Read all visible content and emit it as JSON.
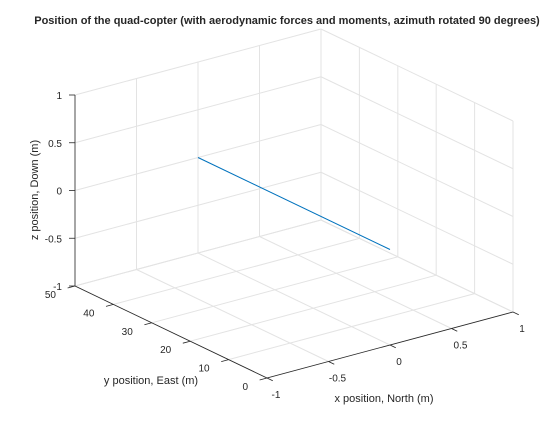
{
  "chart_data": {
    "type": "line",
    "title": "Position of the quad-copter (with aerodynamic forces and moments, azimuth rotated 90 degrees)",
    "xlabel": "x position, North (m)",
    "ylabel": "y position, East (m)",
    "zlabel": "z position, Down (m)",
    "xlim": [
      -1,
      1
    ],
    "ylim": [
      0,
      50
    ],
    "zlim": [
      -1,
      1
    ],
    "xticks": [
      "-1",
      "-0.5",
      "0",
      "0.5",
      "1"
    ],
    "yticks": [
      "0",
      "10",
      "20",
      "30",
      "40",
      "50"
    ],
    "zticks": [
      "-1",
      "-0.5",
      "0",
      "0.5",
      "1"
    ],
    "grid": true,
    "series": [
      {
        "color": "#0072bd",
        "x": [
          0,
          0
        ],
        "y": [
          0,
          50
        ],
        "z": [
          0,
          0
        ]
      }
    ]
  }
}
